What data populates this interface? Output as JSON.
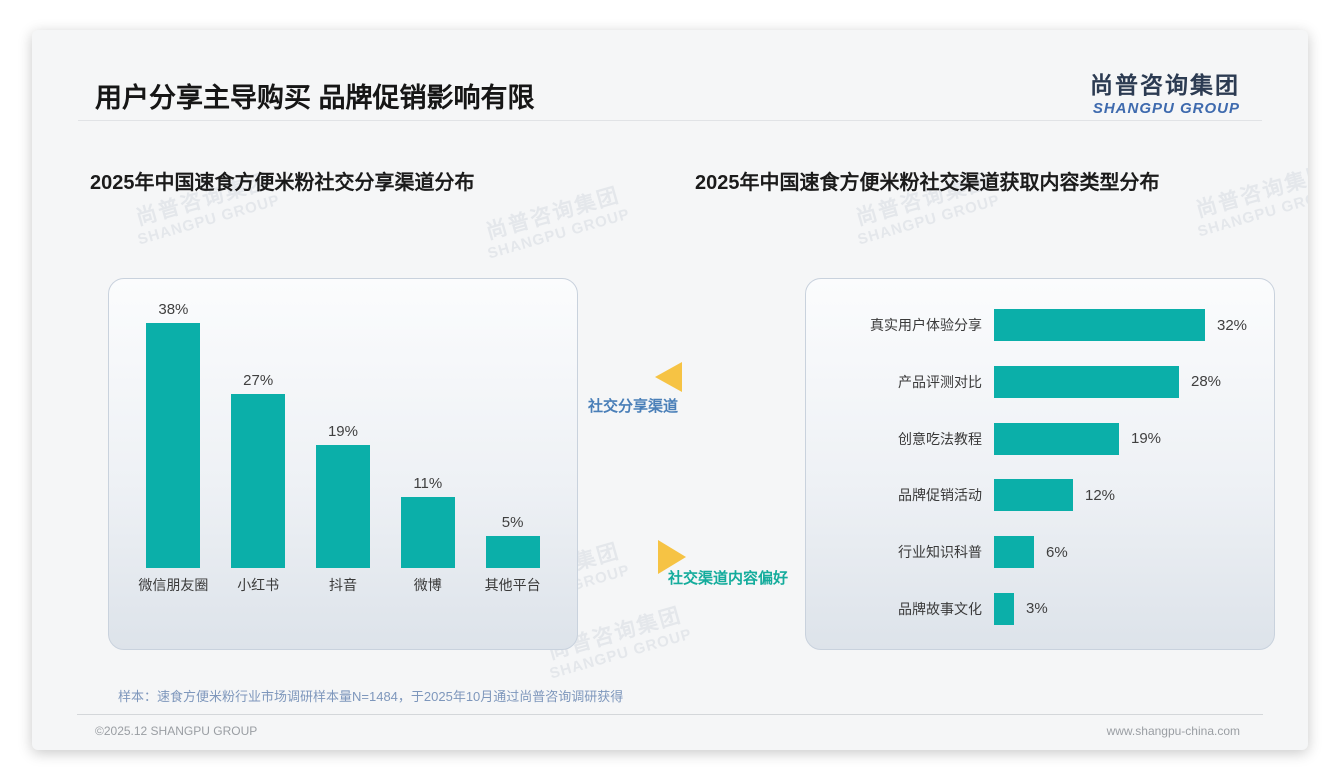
{
  "page": {
    "title": "用户分享主导购买 品牌促销影响有限",
    "logo": {
      "cn": "尚普咨询集团",
      "en": "SHANGPU GROUP"
    },
    "watermark": {
      "cn": "尚普咨询集团",
      "en": "SHANGPU GROUP"
    },
    "sample_note": "样本：速食方便米粉行业市场调研样本量N=1484，于2025年10月通过尚普咨询调研获得",
    "footer": {
      "left": "©2025.12 SHANGPU GROUP",
      "right": "www.shangpu-china.com"
    }
  },
  "annotations": {
    "share_channel_label": "社交分享渠道",
    "content_preference_label": "社交渠道内容偏好",
    "arrow_color": "#f6c344",
    "share_channel_color": "#4a7fb8",
    "content_preference_color": "#14ac9c"
  },
  "chart_data": [
    {
      "type": "bar",
      "title": "2025年中国速食方便米粉社交分享渠道分布",
      "categories": [
        "微信朋友圈",
        "小红书",
        "抖音",
        "微博",
        "其他平台"
      ],
      "values": [
        38,
        27,
        19,
        11,
        5
      ],
      "unit": "%",
      "data_labels": [
        "38%",
        "27%",
        "19%",
        "11%",
        "5%"
      ],
      "bar_color": "#0bafa9",
      "ylim": [
        0,
        40
      ],
      "grid": false,
      "legend": "none",
      "axes_visible": false
    },
    {
      "type": "bar",
      "orientation": "horizontal",
      "title": "2025年中国速食方便米粉社交渠道获取内容类型分布",
      "categories": [
        "真实用户体验分享",
        "产品评测对比",
        "创意吃法教程",
        "品牌促销活动",
        "行业知识科普",
        "品牌故事文化"
      ],
      "values": [
        32,
        28,
        19,
        12,
        6,
        3
      ],
      "unit": "%",
      "data_labels": [
        "32%",
        "28%",
        "19%",
        "12%",
        "6%",
        "3%"
      ],
      "bar_color": "#0bafa9",
      "xlim": [
        0,
        35
      ],
      "grid": false,
      "legend": "none",
      "axes_visible": false
    }
  ]
}
